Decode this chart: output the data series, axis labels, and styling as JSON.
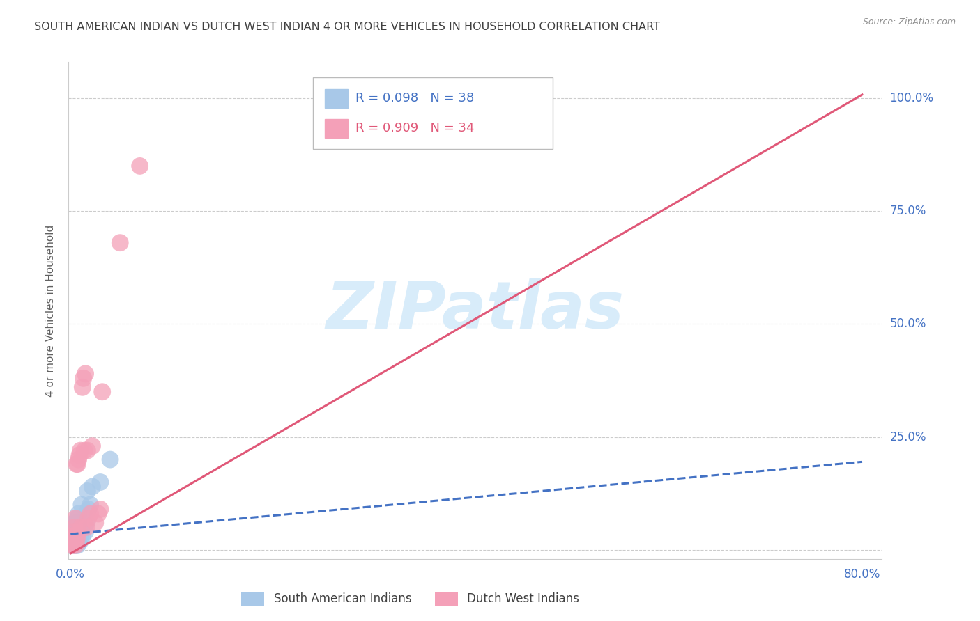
{
  "title": "SOUTH AMERICAN INDIAN VS DUTCH WEST INDIAN 4 OR MORE VEHICLES IN HOUSEHOLD CORRELATION CHART",
  "source": "Source: ZipAtlas.com",
  "ylabel": "4 or more Vehicles in Household",
  "color1": "#a8c8e8",
  "color2": "#f4a0b8",
  "trendline1_color": "#4472c4",
  "trendline2_color": "#e05878",
  "background_color": "#ffffff",
  "grid_color": "#cccccc",
  "watermark_text": "ZIPatlas",
  "watermark_color": "#ddeeff",
  "R1": 0.098,
  "N1": 38,
  "R2": 0.909,
  "N2": 34,
  "legend1_label": "South American Indians",
  "legend2_label": "Dutch West Indians",
  "blue_scatter_x": [
    0.001,
    0.002,
    0.002,
    0.003,
    0.003,
    0.003,
    0.004,
    0.004,
    0.004,
    0.005,
    0.005,
    0.005,
    0.006,
    0.006,
    0.006,
    0.007,
    0.007,
    0.007,
    0.008,
    0.008,
    0.008,
    0.009,
    0.009,
    0.01,
    0.01,
    0.011,
    0.011,
    0.012,
    0.013,
    0.014,
    0.015,
    0.016,
    0.017,
    0.018,
    0.02,
    0.022,
    0.03,
    0.04
  ],
  "blue_scatter_y": [
    0.01,
    0.02,
    0.03,
    0.01,
    0.03,
    0.05,
    0.02,
    0.04,
    0.06,
    0.01,
    0.03,
    0.05,
    0.02,
    0.04,
    0.06,
    0.01,
    0.03,
    0.07,
    0.02,
    0.04,
    0.08,
    0.03,
    0.06,
    0.02,
    0.05,
    0.04,
    0.1,
    0.03,
    0.05,
    0.07,
    0.04,
    0.06,
    0.13,
    0.09,
    0.1,
    0.14,
    0.15,
    0.2
  ],
  "pink_scatter_x": [
    0.001,
    0.002,
    0.002,
    0.003,
    0.003,
    0.004,
    0.004,
    0.005,
    0.005,
    0.005,
    0.006,
    0.006,
    0.007,
    0.007,
    0.008,
    0.008,
    0.009,
    0.01,
    0.011,
    0.012,
    0.013,
    0.014,
    0.015,
    0.016,
    0.017,
    0.018,
    0.02,
    0.022,
    0.025,
    0.028,
    0.03,
    0.032,
    0.05,
    0.07
  ],
  "pink_scatter_y": [
    0.01,
    0.01,
    0.03,
    0.02,
    0.04,
    0.02,
    0.05,
    0.01,
    0.03,
    0.07,
    0.02,
    0.19,
    0.03,
    0.19,
    0.04,
    0.2,
    0.21,
    0.22,
    0.05,
    0.36,
    0.38,
    0.22,
    0.39,
    0.05,
    0.22,
    0.07,
    0.08,
    0.23,
    0.06,
    0.08,
    0.09,
    0.35,
    0.68,
    0.85
  ]
}
